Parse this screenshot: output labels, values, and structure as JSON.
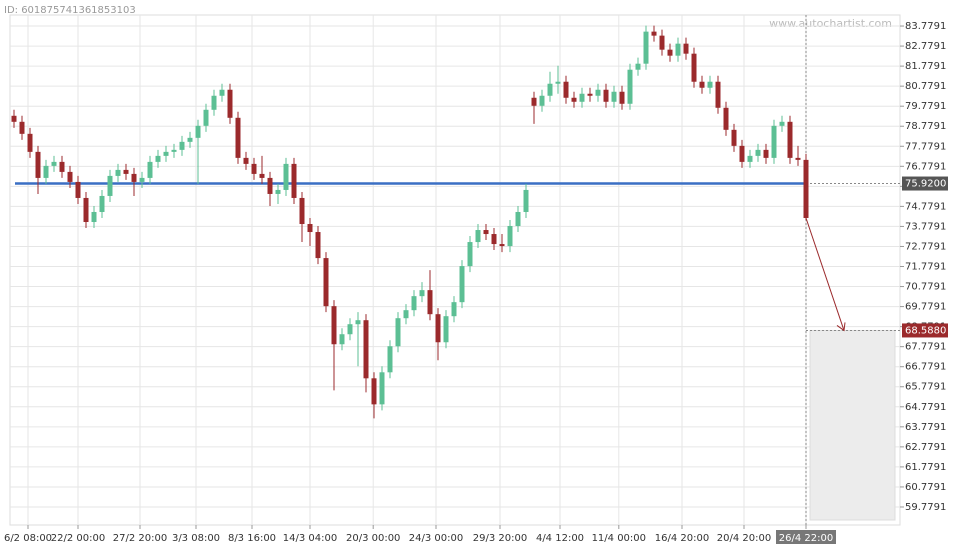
{
  "chart_data": {
    "type": "candlestick",
    "id_text": "ID: 601875741361853103",
    "watermark": "www.autochartist.com",
    "up_color": "#5cbf94",
    "down_color": "#9b2a2c",
    "open": [
      79.3,
      79.0,
      78.4,
      77.5,
      76.2,
      76.8,
      77.0,
      76.5,
      76.0,
      75.2,
      74.0,
      74.5,
      75.3,
      76.3,
      76.6,
      76.4,
      76.0,
      76.2,
      77.0,
      77.3,
      77.5,
      77.6,
      78.0,
      78.2,
      78.8,
      79.6,
      80.3,
      80.6,
      79.2,
      77.2,
      76.9,
      76.4,
      76.2,
      75.4,
      75.6,
      76.9,
      75.2,
      73.9,
      73.5,
      72.2,
      69.8,
      67.9,
      68.4,
      68.9,
      69.1,
      66.2,
      64.9,
      66.5,
      67.8,
      69.2,
      69.6,
      70.3,
      70.6,
      69.4,
      68.0,
      69.3,
      70.0,
      71.8,
      73.0,
      73.6,
      73.4,
      72.9,
      72.8,
      73.8,
      74.5,
      80.2,
      79.8,
      80.3,
      80.9,
      81.0,
      80.2,
      80.0,
      80.4,
      80.3,
      80.6,
      80.0,
      80.5,
      79.9,
      81.6,
      81.9,
      83.5,
      83.3,
      82.6,
      82.3,
      82.9,
      82.4,
      81.0,
      80.7,
      81.0,
      79.7,
      78.6,
      77.8,
      77.0,
      77.3,
      77.6,
      77.2,
      78.8,
      79.0,
      77.2,
      77.1
    ],
    "high": [
      79.6,
      79.3,
      78.7,
      77.8,
      77.1,
      77.3,
      77.3,
      76.8,
      76.3,
      75.5,
      74.8,
      75.6,
      76.6,
      76.9,
      76.9,
      76.7,
      76.5,
      77.3,
      77.6,
      77.8,
      77.9,
      78.3,
      78.5,
      79.1,
      79.9,
      80.6,
      80.9,
      80.9,
      79.5,
      77.5,
      77.2,
      77.3,
      76.5,
      75.9,
      77.2,
      77.2,
      75.5,
      74.2,
      73.8,
      72.5,
      70.1,
      68.7,
      69.2,
      69.5,
      69.4,
      66.5,
      66.8,
      68.1,
      69.5,
      69.9,
      70.6,
      71.0,
      71.6,
      69.7,
      69.6,
      70.3,
      72.1,
      73.3,
      73.9,
      73.9,
      73.7,
      73.4,
      74.1,
      74.8,
      75.9,
      80.5,
      80.6,
      81.5,
      81.8,
      81.3,
      80.5,
      80.7,
      80.7,
      80.9,
      80.9,
      80.8,
      80.8,
      81.9,
      82.2,
      83.8,
      83.8,
      83.6,
      82.9,
      83.2,
      83.2,
      82.7,
      81.3,
      81.3,
      81.3,
      80.0,
      78.9,
      78.1,
      77.6,
      77.9,
      77.9,
      79.1,
      79.3,
      79.3,
      77.8,
      77.4
    ],
    "low": [
      78.7,
      78.1,
      77.2,
      75.4,
      75.9,
      76.5,
      76.2,
      75.7,
      74.9,
      73.7,
      73.7,
      74.2,
      75.0,
      76.0,
      76.1,
      75.3,
      75.7,
      75.9,
      76.7,
      77.0,
      77.2,
      77.3,
      77.7,
      75.9,
      78.5,
      79.3,
      80.0,
      78.9,
      76.9,
      76.6,
      76.1,
      75.9,
      74.8,
      74.9,
      75.3,
      74.9,
      73.0,
      72.8,
      71.9,
      69.5,
      65.6,
      67.6,
      68.1,
      66.8,
      65.5,
      64.2,
      64.6,
      66.2,
      67.5,
      68.9,
      69.3,
      70.0,
      69.1,
      67.1,
      67.7,
      69.0,
      69.7,
      71.5,
      72.7,
      73.1,
      72.6,
      72.5,
      72.5,
      73.5,
      74.2,
      78.9,
      79.5,
      80.0,
      80.4,
      79.9,
      79.7,
      79.7,
      80.0,
      80.0,
      79.7,
      79.7,
      79.6,
      79.6,
      81.3,
      81.6,
      83.0,
      82.3,
      82.0,
      82.0,
      82.1,
      80.7,
      80.4,
      80.4,
      79.4,
      78.3,
      77.5,
      76.7,
      76.7,
      77.0,
      76.9,
      76.9,
      78.5,
      76.9,
      76.8,
      74.1
    ],
    "close": [
      79.0,
      78.4,
      77.5,
      76.2,
      76.8,
      77.0,
      76.5,
      76.0,
      75.2,
      74.0,
      74.5,
      75.3,
      76.3,
      76.6,
      76.4,
      76.0,
      76.2,
      77.0,
      77.3,
      77.5,
      77.6,
      78.0,
      78.2,
      78.8,
      79.6,
      80.3,
      80.6,
      79.2,
      77.2,
      76.9,
      76.4,
      76.2,
      75.4,
      75.6,
      76.9,
      75.2,
      73.9,
      73.5,
      72.2,
      69.8,
      67.9,
      68.4,
      68.9,
      69.1,
      66.2,
      64.9,
      66.5,
      67.8,
      69.2,
      69.6,
      70.3,
      70.6,
      69.4,
      68.0,
      69.3,
      70.0,
      71.8,
      73.0,
      73.6,
      73.4,
      72.9,
      72.8,
      73.8,
      74.5,
      75.6,
      79.8,
      80.3,
      80.9,
      81.0,
      80.2,
      80.0,
      80.4,
      80.3,
      80.6,
      80.0,
      80.5,
      79.9,
      81.6,
      81.9,
      83.5,
      83.3,
      82.6,
      82.3,
      82.9,
      82.4,
      81.0,
      80.7,
      81.0,
      79.7,
      78.6,
      77.8,
      77.0,
      77.3,
      77.6,
      77.2,
      78.8,
      79.0,
      77.2,
      77.1,
      74.2
    ],
    "xlim": [
      -0.5,
      110.75
    ],
    "xticks": [
      {
        "value": 1.75,
        "label": "6/2 08:00"
      },
      {
        "value": 8,
        "label": "22/2 00:00"
      },
      {
        "value": 15.75,
        "label": "27/2 20:00"
      },
      {
        "value": 22.75,
        "label": "3/3 08:00"
      },
      {
        "value": 29.75,
        "label": "8/3 16:00"
      },
      {
        "value": 37,
        "label": "14/3 04:00"
      },
      {
        "value": 44.9,
        "label": "20/3 00:00"
      },
      {
        "value": 52.75,
        "label": "24/3 00:00"
      },
      {
        "value": 60.75,
        "label": "29/3 20:00"
      },
      {
        "value": 68.25,
        "label": "4/4 12:00"
      },
      {
        "value": 75.6,
        "label": "11/4 00:00"
      },
      {
        "value": 83.5,
        "label": "16/4 20:00"
      },
      {
        "value": 91.25,
        "label": "20/4 20:00"
      },
      {
        "value": 99,
        "label": "26/4 22:00"
      }
    ],
    "ylim": [
      58.88,
      84.33
    ],
    "yticks": [
      59.7791,
      60.7791,
      61.7791,
      62.7791,
      63.7791,
      64.7791,
      65.7791,
      66.7791,
      67.7791,
      68.7791,
      69.7791,
      70.7791,
      71.7791,
      72.7791,
      73.7791,
      74.7791,
      75.7791,
      76.7791,
      77.7791,
      78.7791,
      79.7791,
      80.7791,
      81.7791,
      82.7791,
      83.7791
    ],
    "grid": true,
    "support_level": {
      "value": 75.92,
      "label": "75.9200"
    },
    "support_color": "#3a6fc4",
    "forecast_target": {
      "value": 68.588,
      "label": "68.5880"
    }
  }
}
